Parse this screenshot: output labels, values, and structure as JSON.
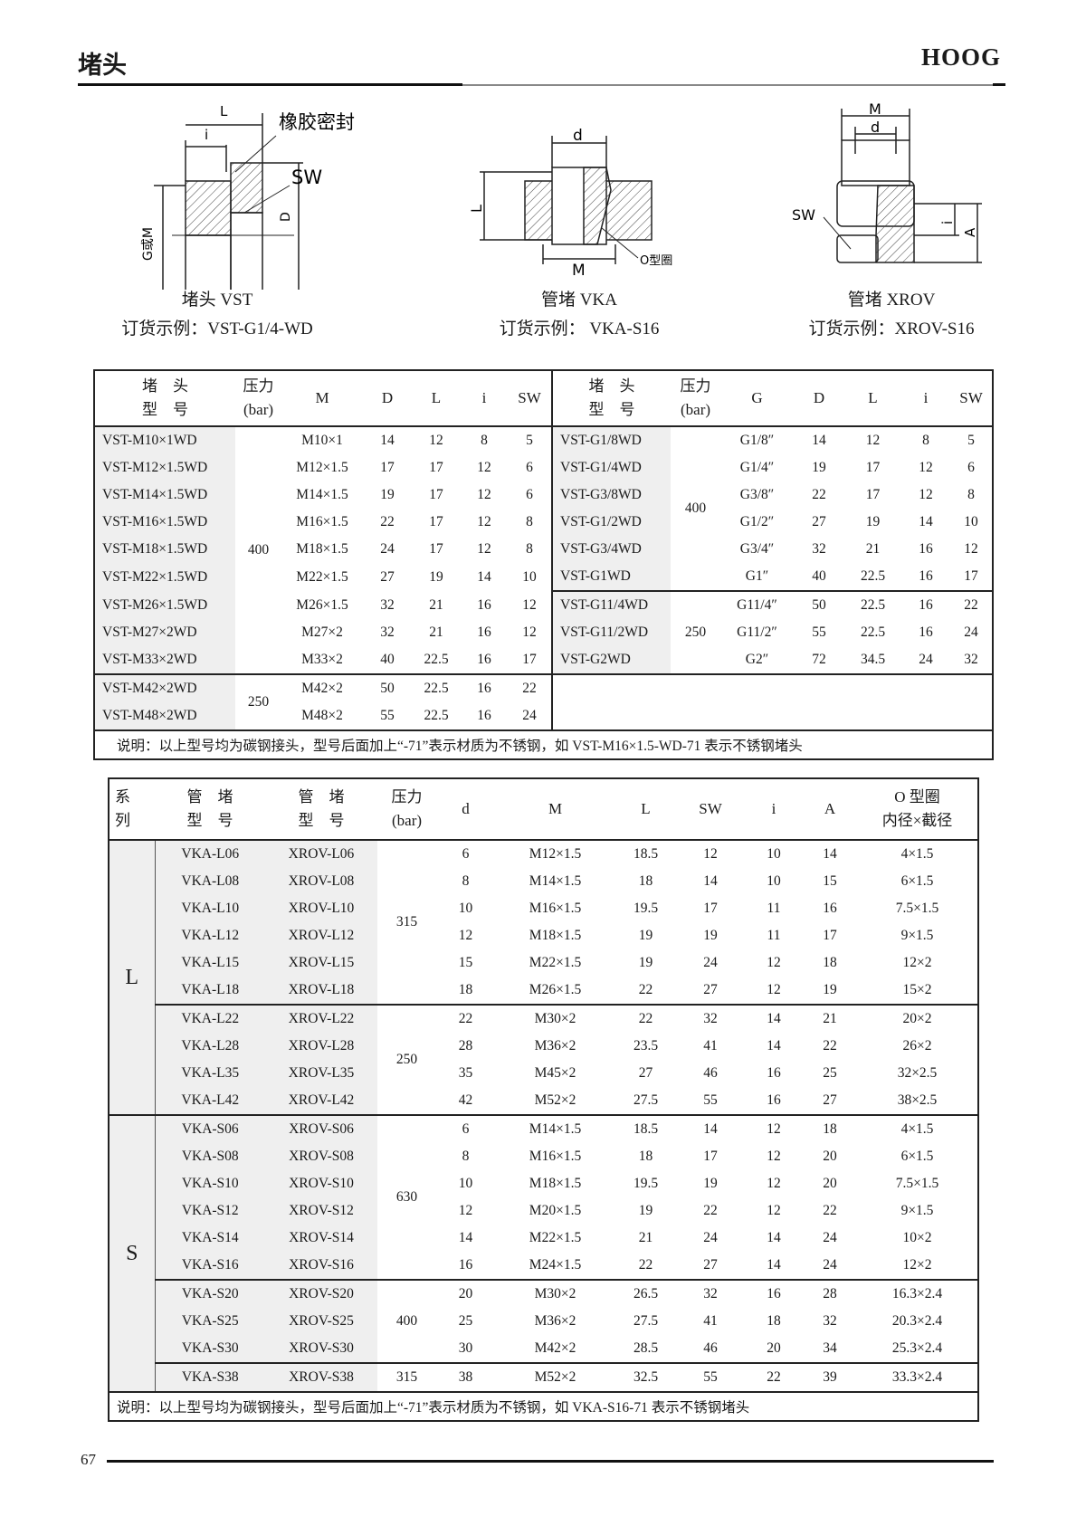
{
  "header": {
    "title": "堵头",
    "brand": "HOOG"
  },
  "footer": {
    "page_number": "67"
  },
  "figures": [
    {
      "name": "堵头 VST",
      "order_example": "订货示例：VST-G1/4-WD",
      "labels": {
        "L": "L",
        "i": "i",
        "seal": "橡胶密封",
        "SW": "SW",
        "D": "D",
        "GM": "G或M"
      }
    },
    {
      "name": "管堵 VKA",
      "order_example": "订货示例：  VKA-S16",
      "labels": {
        "d": "d",
        "L": "L",
        "M": "M",
        "oring": "O型圈"
      }
    },
    {
      "name": "管堵 XROV",
      "order_example": "订货示例：XROV-S16",
      "labels": {
        "M": "M",
        "d": "d",
        "SW": "SW",
        "i": "i",
        "A": "A"
      }
    }
  ],
  "table1": {
    "left_headers": [
      "堵　头|型　号",
      "压力|(bar)",
      "M",
      "D",
      "L",
      "i",
      "SW"
    ],
    "right_headers": [
      "堵　头|型　号",
      "压力|(bar)",
      "G",
      "D",
      "L",
      "i",
      "SW"
    ],
    "left_groups": [
      {
        "pressure": "400",
        "rows": [
          [
            "VST-M10×1WD",
            "M10×1",
            "14",
            "12",
            "8",
            "5"
          ],
          [
            "VST-M12×1.5WD",
            "M12×1.5",
            "17",
            "17",
            "12",
            "6"
          ],
          [
            "VST-M14×1.5WD",
            "M14×1.5",
            "19",
            "17",
            "12",
            "6"
          ],
          [
            "VST-M16×1.5WD",
            "M16×1.5",
            "22",
            "17",
            "12",
            "8"
          ],
          [
            "VST-M18×1.5WD",
            "M18×1.5",
            "24",
            "17",
            "12",
            "8"
          ],
          [
            "VST-M22×1.5WD",
            "M22×1.5",
            "27",
            "19",
            "14",
            "10"
          ],
          [
            "VST-M26×1.5WD",
            "M26×1.5",
            "32",
            "21",
            "16",
            "12"
          ],
          [
            "VST-M27×2WD",
            "M27×2",
            "32",
            "21",
            "16",
            "12"
          ],
          [
            "VST-M33×2WD",
            "M33×2",
            "40",
            "22.5",
            "16",
            "17"
          ]
        ]
      },
      {
        "pressure": "250",
        "rows": [
          [
            "VST-M42×2WD",
            "M42×2",
            "50",
            "22.5",
            "16",
            "22"
          ],
          [
            "VST-M48×2WD",
            "M48×2",
            "55",
            "22.5",
            "16",
            "24"
          ]
        ]
      }
    ],
    "right_groups": [
      {
        "pressure": "400",
        "rows": [
          [
            "VST-G1/8WD",
            "G1/8″",
            "14",
            "12",
            "8",
            "5"
          ],
          [
            "VST-G1/4WD",
            "G1/4″",
            "19",
            "17",
            "12",
            "6"
          ],
          [
            "VST-G3/8WD",
            "G3/8″",
            "22",
            "17",
            "12",
            "8"
          ],
          [
            "VST-G1/2WD",
            "G1/2″",
            "27",
            "19",
            "14",
            "10"
          ],
          [
            "VST-G3/4WD",
            "G3/4″",
            "32",
            "21",
            "16",
            "12"
          ],
          [
            "VST-G1WD",
            "G1″",
            "40",
            "22.5",
            "16",
            "17"
          ]
        ]
      },
      {
        "pressure": "250",
        "rows": [
          [
            "VST-G11/4WD",
            "G11/4″",
            "50",
            "22.5",
            "16",
            "22"
          ],
          [
            "VST-G11/2WD",
            "G11/2″",
            "55",
            "22.5",
            "16",
            "24"
          ],
          [
            "VST-G2WD",
            "G2″",
            "72",
            "34.5",
            "24",
            "32"
          ]
        ]
      }
    ],
    "note": "说明：以上型号均为碳钢接头，型号后面加上“-71”表示材质为不锈钢，如 VST-M16×1.5-WD-71 表示不锈钢堵头"
  },
  "table2": {
    "headers": [
      "系|列",
      "管　堵|型　号",
      "管　堵|型　号",
      "压力|(bar)",
      "d",
      "M",
      "L",
      "SW",
      "i",
      "A",
      "O 型圈|内径×截径"
    ],
    "series": [
      {
        "name": "L",
        "groups": [
          {
            "pressure": "315",
            "rows": [
              [
                "VKA-L06",
                "XROV-L06",
                "6",
                "M12×1.5",
                "18.5",
                "12",
                "10",
                "14",
                "4×1.5"
              ],
              [
                "VKA-L08",
                "XROV-L08",
                "8",
                "M14×1.5",
                "18",
                "14",
                "10",
                "15",
                "6×1.5"
              ],
              [
                "VKA-L10",
                "XROV-L10",
                "10",
                "M16×1.5",
                "19.5",
                "17",
                "11",
                "16",
                "7.5×1.5"
              ],
              [
                "VKA-L12",
                "XROV-L12",
                "12",
                "M18×1.5",
                "19",
                "19",
                "11",
                "17",
                "9×1.5"
              ],
              [
                "VKA-L15",
                "XROV-L15",
                "15",
                "M22×1.5",
                "19",
                "24",
                "12",
                "18",
                "12×2"
              ],
              [
                "VKA-L18",
                "XROV-L18",
                "18",
                "M26×1.5",
                "22",
                "27",
                "12",
                "19",
                "15×2"
              ]
            ]
          },
          {
            "pressure": "250",
            "rows": [
              [
                "VKA-L22",
                "XROV-L22",
                "22",
                "M30×2",
                "22",
                "32",
                "14",
                "21",
                "20×2"
              ],
              [
                "VKA-L28",
                "XROV-L28",
                "28",
                "M36×2",
                "23.5",
                "41",
                "14",
                "22",
                "26×2"
              ],
              [
                "VKA-L35",
                "XROV-L35",
                "35",
                "M45×2",
                "27",
                "46",
                "16",
                "25",
                "32×2.5"
              ],
              [
                "VKA-L42",
                "XROV-L42",
                "42",
                "M52×2",
                "27.5",
                "55",
                "16",
                "27",
                "38×2.5"
              ]
            ]
          }
        ]
      },
      {
        "name": "S",
        "groups": [
          {
            "pressure": "630",
            "rows": [
              [
                "VKA-S06",
                "XROV-S06",
                "6",
                "M14×1.5",
                "18.5",
                "14",
                "12",
                "18",
                "4×1.5"
              ],
              [
                "VKA-S08",
                "XROV-S08",
                "8",
                "M16×1.5",
                "18",
                "17",
                "12",
                "20",
                "6×1.5"
              ],
              [
                "VKA-S10",
                "XROV-S10",
                "10",
                "M18×1.5",
                "19.5",
                "19",
                "12",
                "20",
                "7.5×1.5"
              ],
              [
                "VKA-S12",
                "XROV-S12",
                "12",
                "M20×1.5",
                "19",
                "22",
                "12",
                "22",
                "9×1.5"
              ],
              [
                "VKA-S14",
                "XROV-S14",
                "14",
                "M22×1.5",
                "21",
                "24",
                "14",
                "24",
                "10×2"
              ],
              [
                "VKA-S16",
                "XROV-S16",
                "16",
                "M24×1.5",
                "22",
                "27",
                "14",
                "24",
                "12×2"
              ]
            ]
          },
          {
            "pressure": "400",
            "rows": [
              [
                "VKA-S20",
                "XROV-S20",
                "20",
                "M30×2",
                "26.5",
                "32",
                "16",
                "28",
                "16.3×2.4"
              ],
              [
                "VKA-S25",
                "XROV-S25",
                "25",
                "M36×2",
                "27.5",
                "41",
                "18",
                "32",
                "20.3×2.4"
              ],
              [
                "VKA-S30",
                "XROV-S30",
                "30",
                "M42×2",
                "28.5",
                "46",
                "20",
                "34",
                "25.3×2.4"
              ]
            ]
          },
          {
            "pressure": "315",
            "rows": [
              [
                "VKA-S38",
                "XROV-S38",
                "38",
                "M52×2",
                "32.5",
                "55",
                "22",
                "39",
                "33.3×2.4"
              ]
            ]
          }
        ]
      }
    ],
    "note": "说明：以上型号均为碳钢接头，型号后面加上“-71”表示材质为不锈钢，如  VKA-S16-71 表示不锈钢堵头"
  }
}
